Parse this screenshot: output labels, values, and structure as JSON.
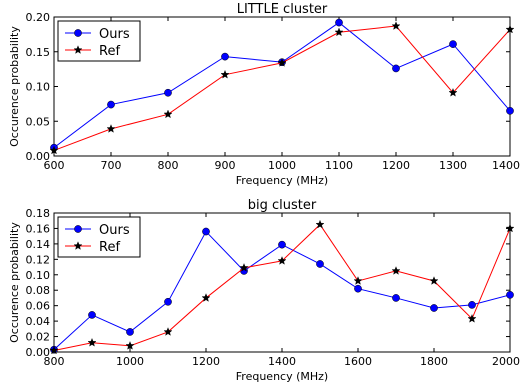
{
  "chart_data": [
    {
      "type": "line",
      "title": "LITTLE cluster",
      "xlabel": "Frequency (MHz)",
      "ylabel": "Occurence probability",
      "xlim": [
        600,
        1400
      ],
      "ylim": [
        0,
        0.2
      ],
      "xticks": [
        600,
        700,
        800,
        900,
        1000,
        1100,
        1200,
        1300,
        1400
      ],
      "xtick_labels": [
        "600",
        "700",
        "800",
        "900",
        "1000",
        "1100",
        "1200",
        "1300",
        "1400"
      ],
      "yticks": [
        0,
        0.05,
        0.1,
        0.15,
        0.2
      ],
      "ytick_labels": [
        "0.00",
        "0.05",
        "0.10",
        "0.15",
        "0.20"
      ],
      "legend_position": "top-left",
      "grid": false,
      "series": [
        {
          "name": "Ours",
          "color": "#0000ff",
          "marker": "circle",
          "x": [
            600,
            700,
            800,
            900,
            1000,
            1100,
            1200,
            1300,
            1400
          ],
          "values": [
            0.012,
            0.074,
            0.091,
            0.143,
            0.135,
            0.192,
            0.126,
            0.161,
            0.065
          ]
        },
        {
          "name": "Ref",
          "color": "#ff0000",
          "marker": "star",
          "x": [
            600,
            700,
            800,
            900,
            1000,
            1100,
            1200,
            1300,
            1400
          ],
          "values": [
            0.008,
            0.039,
            0.06,
            0.117,
            0.134,
            0.178,
            0.187,
            0.091,
            0.182
          ]
        }
      ]
    },
    {
      "type": "line",
      "title": "big cluster",
      "xlabel": "Frequency (MHz)",
      "ylabel": "Occurence probability",
      "xlim": [
        800,
        2000
      ],
      "ylim": [
        0,
        0.18
      ],
      "xticks": [
        800,
        1000,
        1200,
        1400,
        1600,
        1800,
        2000
      ],
      "xtick_labels": [
        "800",
        "1000",
        "1200",
        "1400",
        "1600",
        "1800",
        "2000"
      ],
      "yticks": [
        0,
        0.02,
        0.04,
        0.06,
        0.08,
        0.1,
        0.12,
        0.14,
        0.16,
        0.18
      ],
      "ytick_labels": [
        "0.00",
        "0.02",
        "0.04",
        "0.06",
        "0.08",
        "0.10",
        "0.12",
        "0.14",
        "0.16",
        "0.18"
      ],
      "legend_position": "top-left",
      "grid": false,
      "series": [
        {
          "name": "Ours",
          "color": "#0000ff",
          "marker": "circle",
          "x": [
            800,
            900,
            1000,
            1100,
            1200,
            1300,
            1400,
            1500,
            1600,
            1700,
            1800,
            1900,
            2000
          ],
          "values": [
            0.003,
            0.048,
            0.026,
            0.065,
            0.156,
            0.105,
            0.139,
            0.114,
            0.082,
            0.07,
            0.057,
            0.061,
            0.074
          ]
        },
        {
          "name": "Ref",
          "color": "#ff0000",
          "marker": "star",
          "x": [
            800,
            900,
            1000,
            1100,
            1200,
            1300,
            1400,
            1500,
            1600,
            1700,
            1800,
            1900,
            2000
          ],
          "values": [
            0.002,
            0.012,
            0.008,
            0.026,
            0.07,
            0.109,
            0.118,
            0.165,
            0.092,
            0.105,
            0.092,
            0.043,
            0.16
          ]
        }
      ]
    }
  ]
}
